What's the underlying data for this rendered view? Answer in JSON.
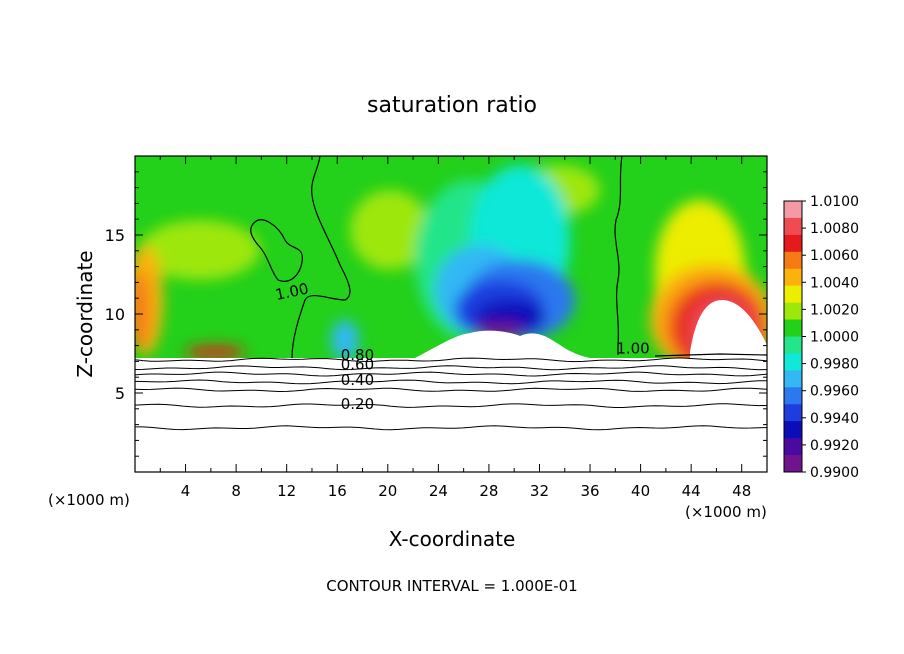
{
  "chart_data": {
    "type": "heatmap",
    "title": "saturation ratio",
    "xlabel": "X-coordinate",
    "ylabel": "Z-coordinate",
    "x_unit_left": "(×1000 m)",
    "x_unit_right": "(×1000 m)",
    "footer": "CONTOUR INTERVAL = 1.000E-01",
    "xlim": [
      0,
      50
    ],
    "ylim": [
      0,
      20
    ],
    "x_ticks": [
      4,
      8,
      12,
      16,
      20,
      24,
      28,
      32,
      36,
      40,
      44,
      48
    ],
    "y_ticks": [
      5,
      10,
      15
    ],
    "colorbar": {
      "levels": [
        "1.0100",
        "1.0080",
        "1.0060",
        "1.0040",
        "1.0020",
        "1.0000",
        "0.9980",
        "0.9960",
        "0.9940",
        "0.9920",
        "0.9900"
      ],
      "colors": [
        "#f29aa6",
        "#ee4c52",
        "#e41a1c",
        "#f57b12",
        "#fbb20a",
        "#eded00",
        "#9ee70a",
        "#23d01a",
        "#24e58a",
        "#10e8d8",
        "#33b8f4",
        "#2b78ef",
        "#1f3cdf",
        "#0c0cb8",
        "#4b0a9f",
        "#6f148c"
      ]
    },
    "contour_labels": [
      {
        "text": "1.00",
        "x": 12.5,
        "z": 11.1
      },
      {
        "text": "1.00",
        "x": 39.4,
        "z": 7.5
      },
      {
        "text": "0.80",
        "x": 17.6,
        "z": 7.1
      },
      {
        "text": "0.60",
        "x": 17.6,
        "z": 6.5
      },
      {
        "text": "0.40",
        "x": 17.6,
        "z": 5.5
      },
      {
        "text": "0.20",
        "x": 17.6,
        "z": 4.0
      }
    ],
    "contours_sub": [
      {
        "value": 0.8,
        "z": 7.1
      },
      {
        "value": 0.6,
        "z": 6.6
      },
      {
        "value": 0.5,
        "z": 6.2
      },
      {
        "value": 0.4,
        "z": 5.7
      },
      {
        "value": 0.3,
        "z": 5.2
      },
      {
        "value": 0.2,
        "z": 4.2
      },
      {
        "value": 0.1,
        "z": 2.8
      }
    ]
  }
}
